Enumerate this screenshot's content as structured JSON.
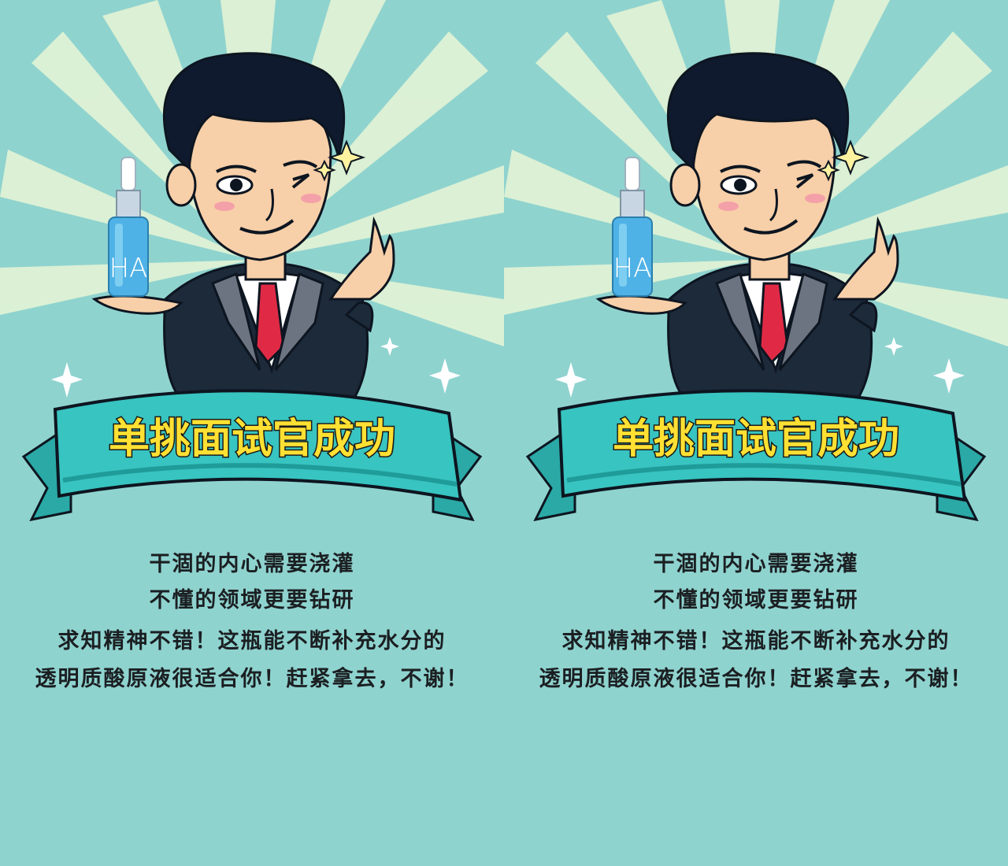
{
  "panels": [
    {
      "banner_title": "单挑面试官成功",
      "bottle_label": "HA",
      "caption_lines": [
        "干涸的内心需要浇灌",
        "不懂的领域更要钻研",
        "求知精神不错！这瓶能不断补充水分的",
        "透明质酸原液很适合你！赶紧拿去，不谢！"
      ]
    },
    {
      "banner_title": "单挑面试官成功",
      "bottle_label": "HA",
      "caption_lines": [
        "干涸的内心需要浇灌",
        "不懂的领域更要钻研",
        "求知精神不错！这瓶能不断补充水分的",
        "透明质酸原液很适合你！赶紧拿去，不谢！"
      ]
    }
  ],
  "colors": {
    "background": "#8fd3cf",
    "ray": "#e9f6d6",
    "banner": "#38c4c0",
    "banner_shadow": "#1f9c9a",
    "banner_text": "#ffe033",
    "suit": "#1c2a3a",
    "tie": "#e02a45",
    "skin": "#f7cfa8",
    "hair": "#0f1a2e",
    "bottle": "#4fb2e6"
  },
  "icons": [
    "sparkle-icon",
    "serum-bottle-icon"
  ]
}
